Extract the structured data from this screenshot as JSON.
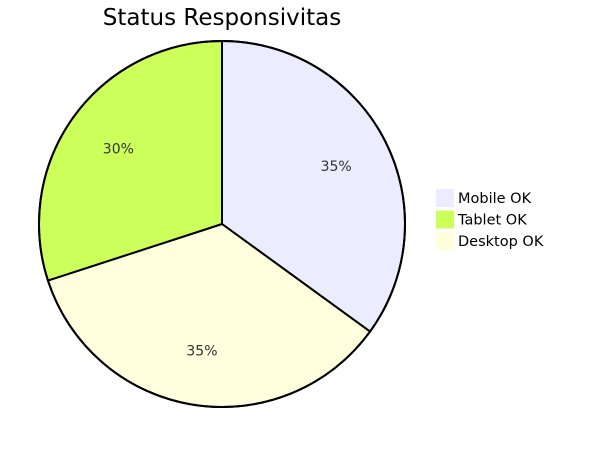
{
  "chart_data": {
    "type": "pie",
    "title": "Status Responsivitas",
    "slices": [
      {
        "label": "Mobile OK",
        "value": 35,
        "display": "35%",
        "color": "#ECECFF"
      },
      {
        "label": "Desktop OK",
        "value": 35,
        "display": "35%",
        "color": "#FFFFDE"
      },
      {
        "label": "Tablet OK",
        "value": 30,
        "display": "30%",
        "color": "#CDFF5A"
      }
    ],
    "legend": {
      "position": "right",
      "entries": [
        {
          "label": "Mobile OK",
          "color": "#ECECFF"
        },
        {
          "label": "Tablet OK",
          "color": "#CDFF5A"
        },
        {
          "label": "Desktop OK",
          "color": "#FFFFDE"
        }
      ]
    }
  }
}
